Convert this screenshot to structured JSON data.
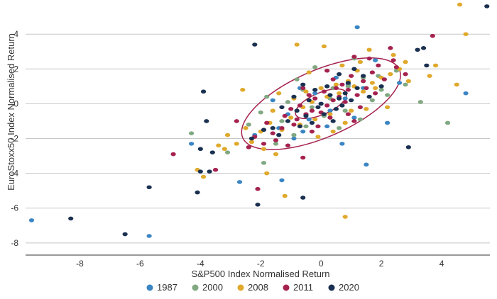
{
  "chart_data": {
    "type": "scatter",
    "title": "",
    "xlabel": "S&P500 Index Normalised Return",
    "ylabel": "EuroStoxx50 Index Normalised Return",
    "xlim": [
      -9.8,
      5.6
    ],
    "ylim": [
      -8.7,
      5.8
    ],
    "x_ticks": [
      -8,
      -6,
      -4,
      -2,
      0,
      2,
      4
    ],
    "y_ticks": [
      -8,
      -6,
      -4,
      -2,
      0,
      2,
      4
    ],
    "grid": "horizontal",
    "legend_position": "bottom",
    "series": [
      {
        "name": "1987",
        "color": "#3b85c4",
        "points": [
          [
            -9.6,
            -6.7
          ],
          [
            -5.7,
            -7.6
          ],
          [
            -4.3,
            -2.3
          ],
          [
            1.2,
            4.4
          ],
          [
            1.5,
            -3.5
          ],
          [
            -1.3,
            -4.4
          ],
          [
            -2.7,
            -4.5
          ],
          [
            -1.4,
            -1.4
          ],
          [
            -0.6,
            -1.6
          ],
          [
            0.3,
            -0.4
          ],
          [
            -0.2,
            0.6
          ],
          [
            0.8,
            0.3
          ],
          [
            1.1,
            -0.8
          ],
          [
            2.2,
            -1.1
          ],
          [
            4.8,
            0.6
          ],
          [
            -0.9,
            -2.0
          ],
          [
            0.5,
            1.5
          ],
          [
            -1.6,
            0.2
          ],
          [
            1.8,
            2.5
          ],
          [
            -0.4,
            -0.9
          ],
          [
            0.9,
            1.1
          ],
          [
            0.2,
            -1.3
          ],
          [
            -1.1,
            -0.6
          ],
          [
            1.4,
            0.9
          ],
          [
            -2.2,
            -1.8
          ],
          [
            0.7,
            -2.3
          ],
          [
            -0.7,
            0.9
          ],
          [
            2.6,
            1.2
          ]
        ]
      },
      {
        "name": "2000",
        "color": "#80a881",
        "points": [
          [
            -4.3,
            -1.7
          ],
          [
            -3.1,
            -2.8
          ],
          [
            -1.9,
            -3.4
          ],
          [
            3.3,
            0.1
          ],
          [
            4.2,
            -1.1
          ],
          [
            -0.2,
            2.1
          ],
          [
            1.4,
            1.5
          ],
          [
            0.8,
            -0.4
          ],
          [
            -0.6,
            0.8
          ],
          [
            -1.3,
            -1.0
          ],
          [
            0.3,
            0.3
          ],
          [
            2.0,
            0.8
          ],
          [
            -1.8,
            0.4
          ],
          [
            0.6,
            -1.4
          ],
          [
            1.1,
            2.6
          ],
          [
            -0.9,
            -1.8
          ],
          [
            2.5,
            1.9
          ],
          [
            -2.4,
            -1.2
          ],
          [
            0.1,
            -0.7
          ],
          [
            1.7,
            0.2
          ],
          [
            -0.3,
            -0.2
          ],
          [
            0.9,
            1.0
          ],
          [
            -1.5,
            -2.3
          ],
          [
            2.8,
            1.1
          ],
          [
            -0.8,
            1.4
          ],
          [
            1.3,
            -0.9
          ],
          [
            0.4,
            0.9
          ],
          [
            -2.0,
            -0.5
          ],
          [
            1.9,
            1.6
          ],
          [
            -0.5,
            -1.3
          ],
          [
            2.2,
            0.5
          ],
          [
            -1.1,
            0.1
          ]
        ]
      },
      {
        "name": "2008",
        "color": "#e0a92c",
        "points": [
          [
            4.6,
            5.7
          ],
          [
            4.8,
            4.0
          ],
          [
            4.5,
            1.1
          ],
          [
            3.8,
            2.2
          ],
          [
            3.6,
            1.6
          ],
          [
            -3.9,
            -4.2
          ],
          [
            -4.1,
            -3.8
          ],
          [
            -3.2,
            -2.6
          ],
          [
            0.8,
            -6.5
          ],
          [
            -1.2,
            -5.3
          ],
          [
            -1.8,
            -4.0
          ],
          [
            -0.8,
            3.4
          ],
          [
            0.1,
            3.3
          ],
          [
            -2.6,
            0.8
          ],
          [
            -3.1,
            -1.8
          ],
          [
            2.2,
            -0.2
          ],
          [
            2.9,
            1.3
          ],
          [
            -1.5,
            -2.9
          ],
          [
            1.6,
            3.1
          ],
          [
            2.4,
            2.8
          ],
          [
            -0.4,
            1.8
          ],
          [
            0.7,
            2.2
          ],
          [
            1.2,
            1.9
          ],
          [
            -0.9,
            0.3
          ],
          [
            -1.7,
            -1.1
          ],
          [
            -2.3,
            -2.2
          ],
          [
            0.4,
            -1.6
          ],
          [
            1.0,
            -0.4
          ],
          [
            -0.2,
            -0.9
          ],
          [
            0.6,
            0.6
          ],
          [
            -1.3,
            -1.5
          ],
          [
            1.8,
            0.9
          ],
          [
            -0.6,
            -0.2
          ],
          [
            2.0,
            1.5
          ],
          [
            -2.0,
            -1.6
          ],
          [
            0.2,
            0.4
          ],
          [
            1.4,
            0.7
          ],
          [
            -1.0,
            -0.8
          ],
          [
            0.9,
            1.3
          ],
          [
            -0.3,
            0.1
          ],
          [
            1.5,
            -0.3
          ],
          [
            -1.6,
            -0.4
          ],
          [
            2.6,
            2.0
          ],
          [
            -2.8,
            -2.3
          ],
          [
            0.3,
            -0.6
          ],
          [
            1.1,
            1.0
          ],
          [
            -0.7,
            -1.2
          ],
          [
            0.5,
            1.1
          ],
          [
            -1.4,
            0.6
          ],
          [
            2.3,
            1.7
          ],
          [
            -2.5,
            -1.4
          ],
          [
            1.3,
            2.4
          ],
          [
            -0.1,
            -1.9
          ],
          [
            0.8,
            -1.1
          ],
          [
            -1.9,
            -2.6
          ],
          [
            1.7,
            1.2
          ],
          [
            -0.5,
            0.7
          ],
          [
            2.8,
            2.4
          ],
          [
            -3.4,
            -2.4
          ],
          [
            0.0,
            0.9
          ]
        ]
      },
      {
        "name": "2011",
        "color": "#a52250",
        "points": [
          [
            -4.9,
            -2.9
          ],
          [
            -3.5,
            -3.8
          ],
          [
            -0.6,
            -3.1
          ],
          [
            -2.1,
            -4.9
          ],
          [
            3.7,
            3.9
          ],
          [
            2.3,
            3.2
          ],
          [
            2.5,
            2.1
          ],
          [
            -2.8,
            -1.0
          ],
          [
            -1.9,
            -2.3
          ],
          [
            2.8,
            1.7
          ],
          [
            1.1,
            2.7
          ],
          [
            -0.3,
            -0.4
          ],
          [
            0.4,
            0.2
          ],
          [
            0.9,
            0.8
          ],
          [
            -0.8,
            -0.9
          ],
          [
            1.4,
            1.3
          ],
          [
            -1.3,
            -1.4
          ],
          [
            0.2,
            -0.1
          ],
          [
            0.7,
            1.1
          ],
          [
            -0.5,
            -0.6
          ],
          [
            1.2,
            0.5
          ],
          [
            -1.0,
            -0.3
          ],
          [
            0.5,
            0.9
          ],
          [
            -0.2,
            0.3
          ],
          [
            1.7,
            1.8
          ],
          [
            -1.6,
            -1.7
          ],
          [
            0.0,
            -0.5
          ],
          [
            0.8,
            0.1
          ],
          [
            -0.9,
            -1.2
          ],
          [
            1.5,
            0.9
          ],
          [
            -0.4,
            0.5
          ],
          [
            0.3,
            -0.8
          ],
          [
            1.9,
            2.2
          ],
          [
            -1.2,
            -0.7
          ],
          [
            0.6,
            0.4
          ],
          [
            -0.7,
            -0.1
          ],
          [
            1.0,
            1.6
          ],
          [
            -1.8,
            -1.1
          ],
          [
            0.1,
            0.7
          ],
          [
            1.3,
            -0.2
          ],
          [
            -0.1,
            -1.3
          ],
          [
            2.1,
            1.4
          ],
          [
            -2.2,
            -1.9
          ],
          [
            0.9,
            -0.6
          ],
          [
            -0.6,
            0.9
          ],
          [
            1.6,
            2.6
          ],
          [
            -1.5,
            -2.1
          ],
          [
            0.4,
            1.4
          ],
          [
            -0.3,
            -1.6
          ],
          [
            1.8,
            0.6
          ],
          [
            -2.4,
            -2.5
          ],
          [
            2.4,
            2.5
          ],
          [
            0.2,
            1.9
          ],
          [
            -1.1,
            -2.4
          ],
          [
            1.1,
            -1.0
          ]
        ]
      },
      {
        "name": "2020",
        "color": "#1a3050",
        "points": [
          [
            5.5,
            5.6
          ],
          [
            -8.3,
            -6.6
          ],
          [
            -6.5,
            -7.5
          ],
          [
            -5.7,
            -4.8
          ],
          [
            -4.0,
            -3.9
          ],
          [
            -3.7,
            -3.9
          ],
          [
            -4.0,
            -2.6
          ],
          [
            -3.6,
            -2.8
          ],
          [
            -4.1,
            -5.1
          ],
          [
            -3.9,
            0.7
          ],
          [
            -3.8,
            -1.0
          ],
          [
            -2.2,
            3.4
          ],
          [
            -2.1,
            -5.8
          ],
          [
            -0.6,
            -5.4
          ],
          [
            2.9,
            -2.5
          ],
          [
            3.2,
            3.1
          ],
          [
            3.5,
            2.2
          ],
          [
            3.4,
            3.2
          ],
          [
            -0.1,
            -0.2
          ],
          [
            0.3,
            0.5
          ],
          [
            -0.5,
            -0.7
          ],
          [
            0.6,
            0.3
          ],
          [
            -0.8,
            -0.4
          ],
          [
            0.9,
            1.2
          ],
          [
            -0.2,
            0.8
          ],
          [
            0.1,
            -0.6
          ],
          [
            0.5,
            -0.3
          ],
          [
            -0.4,
            0.2
          ],
          [
            1.2,
            0.9
          ],
          [
            -1.1,
            -1.0
          ],
          [
            0.8,
            0.6
          ],
          [
            -0.7,
            -1.3
          ],
          [
            0.2,
            1.0
          ],
          [
            -0.3,
            -1.1
          ],
          [
            1.0,
            0.2
          ],
          [
            -1.3,
            -0.2
          ],
          [
            0.4,
            -1.0
          ],
          [
            -0.9,
            0.4
          ],
          [
            1.4,
            1.6
          ],
          [
            -1.6,
            -1.4
          ],
          [
            0.7,
            -0.1
          ],
          [
            -0.6,
            1.1
          ],
          [
            1.6,
            0.4
          ],
          [
            -1.4,
            -1.8
          ],
          [
            0.0,
            0.0
          ],
          [
            1.1,
            2.0
          ],
          [
            -1.9,
            -1.5
          ],
          [
            2.0,
            1.0
          ],
          [
            -2.3,
            -2.0
          ],
          [
            0.6,
            1.7
          ]
        ]
      }
    ],
    "ellipses": [
      {
        "cx": 0.0,
        "cy": 0.0,
        "sx": 0.85,
        "sy": 0.85,
        "rho": 0.62,
        "k": 1.0,
        "color": "#a52250"
      },
      {
        "cx": 0.0,
        "cy": 0.0,
        "sx": 0.85,
        "sy": 0.85,
        "rho": 0.62,
        "k": 3.1,
        "color": "#a52250"
      }
    ]
  }
}
